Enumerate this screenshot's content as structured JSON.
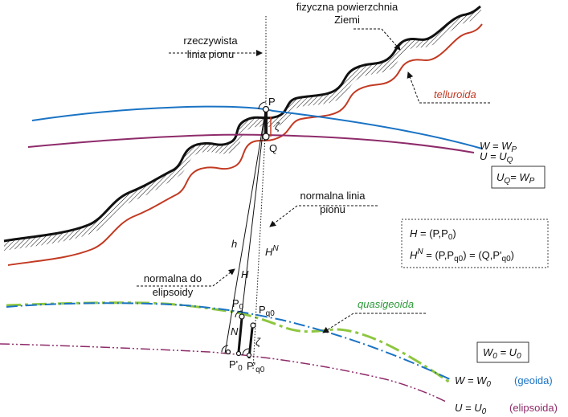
{
  "labels": {
    "surface_line1": "fizyczna powierzchnia",
    "surface_line2": "Ziemi",
    "true_vertical_line1": "rzeczywista",
    "true_vertical_line2": "linia pionu",
    "telluroid": "telluroida",
    "normal_vertical_line1": "normalna linia",
    "normal_vertical_line2": "pionu",
    "ellipsoid_normal_line1": "normalna do",
    "ellipsoid_normal_line2": "elipsoidy",
    "quasigeoid": "quasigeoida",
    "geoid": "(geoida)",
    "ellipsoid": "(elipsoida)"
  },
  "points": {
    "P": "P",
    "Q": "Q",
    "P0": "P",
    "P0_sub": "0",
    "Pq0": "P",
    "Pq0_sub": "q0",
    "P0p": "P'",
    "P0p_sub": "0",
    "Pq0p": "P'",
    "Pq0p_sub": "q0"
  },
  "segments": {
    "h": "h",
    "H": "H",
    "HN": "H",
    "HN_sup": "N",
    "N": "N",
    "zeta_top": "ζ",
    "zeta_bottom": "ζ"
  },
  "equations": {
    "W_WP": {
      "lhs": "W",
      "rhs": "W",
      "sub": "P"
    },
    "U_UQ": {
      "lhs": "U",
      "rhs": "U",
      "sub": "Q"
    },
    "UQ_WP": {
      "lhs": "U",
      "lhs_sub": "Q",
      "rhs": "W",
      "rhs_sub": "P"
    },
    "W0_U0": {
      "lhs": "W",
      "lhs_sub": "0",
      "rhs": "U",
      "rhs_sub": "0"
    },
    "W_W0": {
      "lhs": "W",
      "rhs": "W",
      "sub": "0"
    },
    "U_U0": {
      "lhs": "U",
      "rhs": "U",
      "sub": "0"
    },
    "H_def": {
      "a": "H",
      "b": "(P,P",
      "b_sub": "0",
      "c": ")"
    },
    "HN_def": {
      "a": "H",
      "a_sup": "N",
      "b": "(P,P",
      "b_sub": "q0",
      "c": ") = (Q,P'",
      "c_sub": "q0",
      "d": ")"
    }
  },
  "colors": {
    "surface": "#111111",
    "telluroid": "#c23a22",
    "geop": "#1a73c4",
    "spheroid": "#8e2b6a",
    "quasigeoid": "#8ec63f",
    "geoid": "#1a73c4",
    "ellipsoid": "#8e2b6a"
  }
}
